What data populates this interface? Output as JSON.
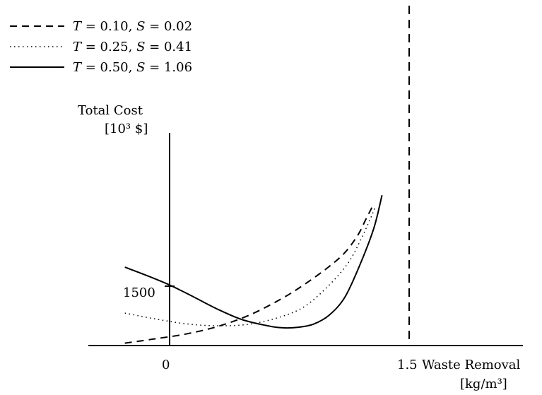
{
  "chart_data": {
    "type": "line",
    "title": "",
    "ylabel": "Total Cost",
    "yunit": "[10³ $]",
    "xlabel": "Waste Removal",
    "xunit": "[kg/m³]",
    "x_ticks": [
      {
        "value": 0,
        "label": "0"
      },
      {
        "value": 1.5,
        "label": "1.5"
      }
    ],
    "y_ticks": [
      {
        "value": 1500,
        "label": "1500"
      }
    ],
    "xlim": [
      -0.31,
      1.83
    ],
    "ylim": [
      0,
      3820
    ],
    "grid": false,
    "legend_position": "top-left",
    "vertical_marker": {
      "x": 1.5,
      "style": "dashed"
    },
    "series": [
      {
        "name": "T = 0.10, S = 0.02",
        "legend": {
          "T": "0.10",
          "S": "0.02"
        },
        "style": "dashed",
        "x": [
          -0.28,
          -0.1,
          0.1,
          0.3,
          0.5,
          0.7,
          0.85,
          1.0,
          1.1,
          1.18,
          1.23,
          1.27
        ],
        "y": [
          60,
          165,
          290,
          480,
          770,
          1180,
          1560,
          2000,
          2360,
          2800,
          3200,
          3510
        ]
      },
      {
        "name": "T = 0.25, S = 0.41",
        "legend": {
          "T": "0.25, ",
          "S": "0.41"
        },
        "style": "dotted",
        "x": [
          -0.28,
          -0.1,
          0.1,
          0.3,
          0.5,
          0.7,
          0.85,
          1.0,
          1.12,
          1.2,
          1.25,
          1.29
        ],
        "y": [
          820,
          680,
          550,
          500,
          540,
          730,
          1000,
          1530,
          2100,
          2700,
          3140,
          3510
        ]
      },
      {
        "name": "T = 0.50, S = 1.06",
        "legend": {
          "T": "0.50",
          "S": "1.06"
        },
        "style": "solid",
        "x": [
          -0.28,
          -0.15,
          0.0,
          0.15,
          0.3,
          0.45,
          0.6,
          0.7,
          0.8,
          0.9,
          1.0,
          1.1,
          1.2,
          1.28,
          1.33
        ],
        "y": [
          1980,
          1780,
          1530,
          1230,
          920,
          660,
          510,
          450,
          460,
          540,
          770,
          1240,
          2120,
          2980,
          3800
        ]
      }
    ]
  }
}
